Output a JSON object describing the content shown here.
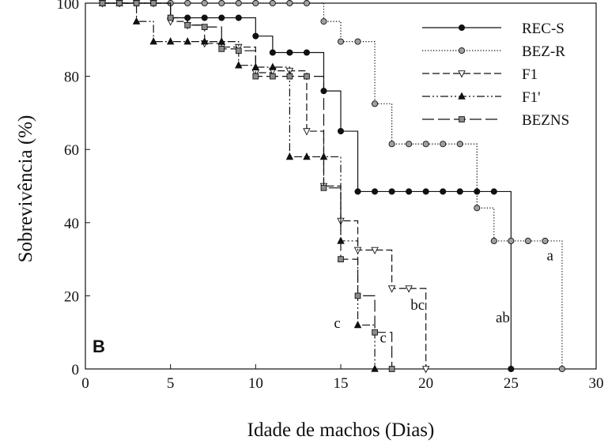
{
  "chart_data": {
    "type": "line",
    "subtype": "step",
    "xlabel": "Idade de machos (Dias)",
    "ylabel": "Sobrevivência (%)",
    "panel_label": "B",
    "xlim": [
      0,
      30
    ],
    "ylim": [
      0,
      100
    ],
    "xticks": [
      0,
      5,
      10,
      15,
      20,
      25,
      30
    ],
    "yticks": [
      0,
      20,
      40,
      60,
      80,
      100
    ],
    "grid": false,
    "legend_position": "top-right",
    "series": [
      {
        "name": "REC-S",
        "line_style": "solid",
        "marker": "circle",
        "marker_fill": "#111111",
        "x": [
          1,
          2,
          3,
          4,
          5,
          6,
          7,
          8,
          9,
          10,
          11,
          12,
          13,
          14,
          15,
          16,
          17,
          18,
          19,
          20,
          21,
          22,
          23,
          24,
          25
        ],
        "y": [
          100,
          100,
          100,
          100,
          96,
          96,
          96,
          96,
          96,
          91,
          86.5,
          86.5,
          86.5,
          76,
          65,
          48.5,
          48.5,
          48.5,
          48.5,
          48.5,
          48.5,
          48.5,
          48.5,
          48.5,
          0
        ]
      },
      {
        "name": "BEZ-R",
        "line_style": "dotted",
        "marker": "circle",
        "marker_fill": "#a0a0a0",
        "x": [
          1,
          2,
          3,
          4,
          5,
          6,
          7,
          8,
          9,
          10,
          11,
          12,
          13,
          14,
          15,
          16,
          17,
          18,
          19,
          20,
          21,
          22,
          23,
          24,
          25,
          26,
          27,
          28
        ],
        "y": [
          100,
          100,
          100,
          100,
          100,
          100,
          100,
          100,
          100,
          100,
          100,
          100,
          100,
          95,
          89.5,
          89.5,
          72.5,
          61.5,
          61.5,
          61.5,
          61.5,
          61.5,
          44,
          35,
          35,
          35,
          35,
          0
        ]
      },
      {
        "name": "F1",
        "line_style": "dashed",
        "marker": "triangle-down",
        "marker_fill": "#ffffff",
        "x": [
          1,
          2,
          3,
          4,
          5,
          6,
          7,
          8,
          9,
          10,
          11,
          12,
          13,
          14,
          15,
          16,
          17,
          18,
          19,
          20
        ],
        "y": [
          100,
          100,
          100,
          100,
          95,
          94,
          89,
          88,
          88,
          81,
          81.5,
          81.5,
          65,
          50,
          40.5,
          32.5,
          32.5,
          22,
          22,
          0
        ]
      },
      {
        "name": "F1'",
        "line_style": "dash-dot-dot",
        "marker": "triangle-up",
        "marker_fill": "#111111",
        "x": [
          1,
          2,
          3,
          4,
          5,
          6,
          7,
          8,
          9,
          10,
          11,
          12,
          13,
          14,
          15,
          16,
          17
        ],
        "y": [
          100,
          100,
          95,
          89.5,
          89.5,
          89.5,
          89.5,
          89.5,
          83,
          82.5,
          82.5,
          58,
          58,
          58,
          35,
          12,
          0
        ]
      },
      {
        "name": "BEZNS",
        "line_style": "long-dash",
        "marker": "square",
        "marker_fill": "#8c8c8c",
        "x": [
          1,
          2,
          3,
          4,
          5,
          6,
          7,
          8,
          9,
          10,
          11,
          12,
          13,
          14,
          15,
          16,
          17,
          18
        ],
        "y": [
          100,
          100,
          100,
          100,
          96,
          94,
          93.5,
          87.5,
          87,
          80,
          80,
          80,
          80,
          49.5,
          30,
          20,
          10,
          0
        ]
      }
    ],
    "annotations": [
      {
        "text": "a",
        "x": 27.1,
        "y": 31
      },
      {
        "text": "ab",
        "x": 24.1,
        "y": 14
      },
      {
        "text": "bc",
        "x": 19.1,
        "y": 17.5
      },
      {
        "text": "c",
        "x": 14.6,
        "y": 12.5
      },
      {
        "text": "c",
        "x": 17.3,
        "y": 8.5
      }
    ]
  }
}
